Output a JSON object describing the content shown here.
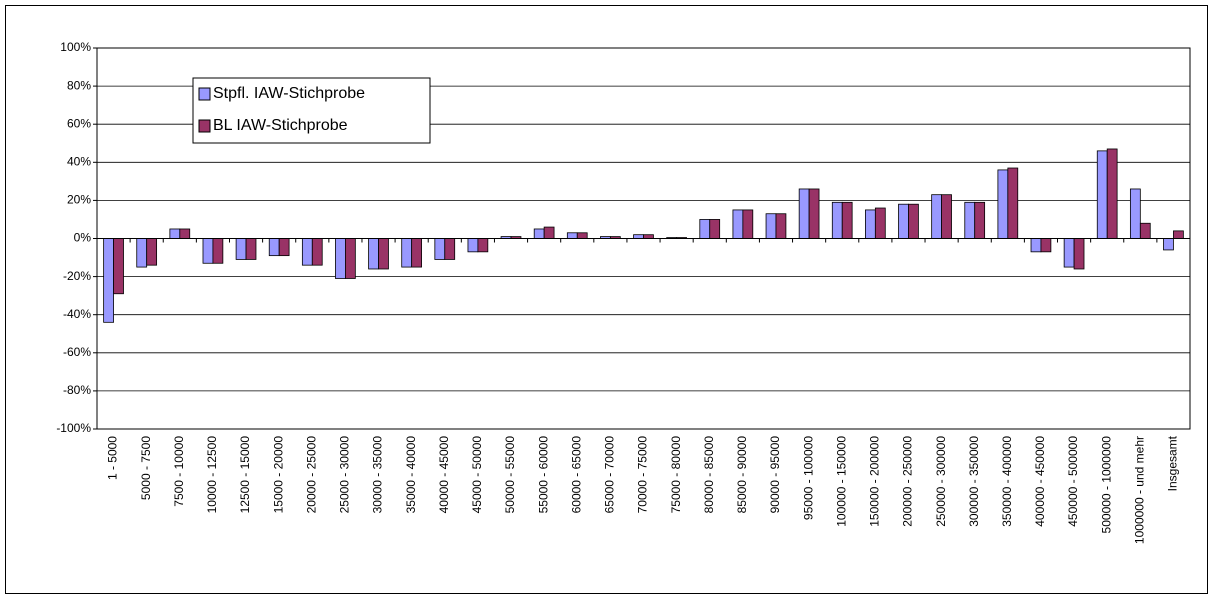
{
  "chart_data": {
    "type": "bar",
    "categories": [
      "1 - 5000",
      "5000 - 7500",
      "7500 - 10000",
      "10000 - 12500",
      "12500 - 15000",
      "15000 - 20000",
      "20000 - 25000",
      "25000 - 30000",
      "30000 - 35000",
      "35000 - 40000",
      "40000 - 45000",
      "45000 - 50000",
      "50000 - 55000",
      "55000 - 60000",
      "60000 - 65000",
      "65000 - 70000",
      "70000 - 75000",
      "75000 - 80000",
      "80000 - 85000",
      "85000 - 90000",
      "90000 - 95000",
      "95000 - 100000",
      "100000 - 150000",
      "150000 - 200000",
      "200000 - 250000",
      "250000 - 300000",
      "300000 - 350000",
      "350000 - 400000",
      "400000 - 450000",
      "450000 - 500000",
      "500000 - 1000000",
      "1000000 - und mehr",
      "Insgesamt"
    ],
    "series": [
      {
        "name": "Stpfl. IAW-Stichprobe",
        "color": "#9999ff",
        "values": [
          -44,
          -15,
          5,
          -13,
          -11,
          -9,
          -14,
          -21,
          -16,
          -15,
          -11,
          -7,
          1,
          5,
          3,
          1,
          2,
          0.5,
          10,
          15,
          13,
          26,
          19,
          15,
          18,
          23,
          19,
          36,
          -7,
          -15,
          46,
          26,
          -6
        ]
      },
      {
        "name": "BL IAW-Stichprobe",
        "color": "#993366",
        "values": [
          -29,
          -14,
          5,
          -13,
          -11,
          -9,
          -14,
          -21,
          -16,
          -15,
          -11,
          -7,
          1,
          6,
          3,
          1,
          2,
          0.5,
          10,
          15,
          13,
          26,
          19,
          16,
          18,
          23,
          19,
          37,
          -7,
          -16,
          47,
          8,
          4
        ]
      }
    ],
    "ylim": [
      -100,
      100
    ],
    "yticks": [
      {
        "value": -100,
        "label": "-100%"
      },
      {
        "value": -80,
        "label": "-80%"
      },
      {
        "value": -60,
        "label": "-60%"
      },
      {
        "value": -40,
        "label": "-40%"
      },
      {
        "value": -20,
        "label": "-20%"
      },
      {
        "value": 0,
        "label": "0%"
      },
      {
        "value": 20,
        "label": "20%"
      },
      {
        "value": 40,
        "label": "40%"
      },
      {
        "value": 60,
        "label": "60%"
      },
      {
        "value": 80,
        "label": "80%"
      },
      {
        "value": 100,
        "label": "100%"
      }
    ],
    "grid": true,
    "legend": "upper left"
  }
}
